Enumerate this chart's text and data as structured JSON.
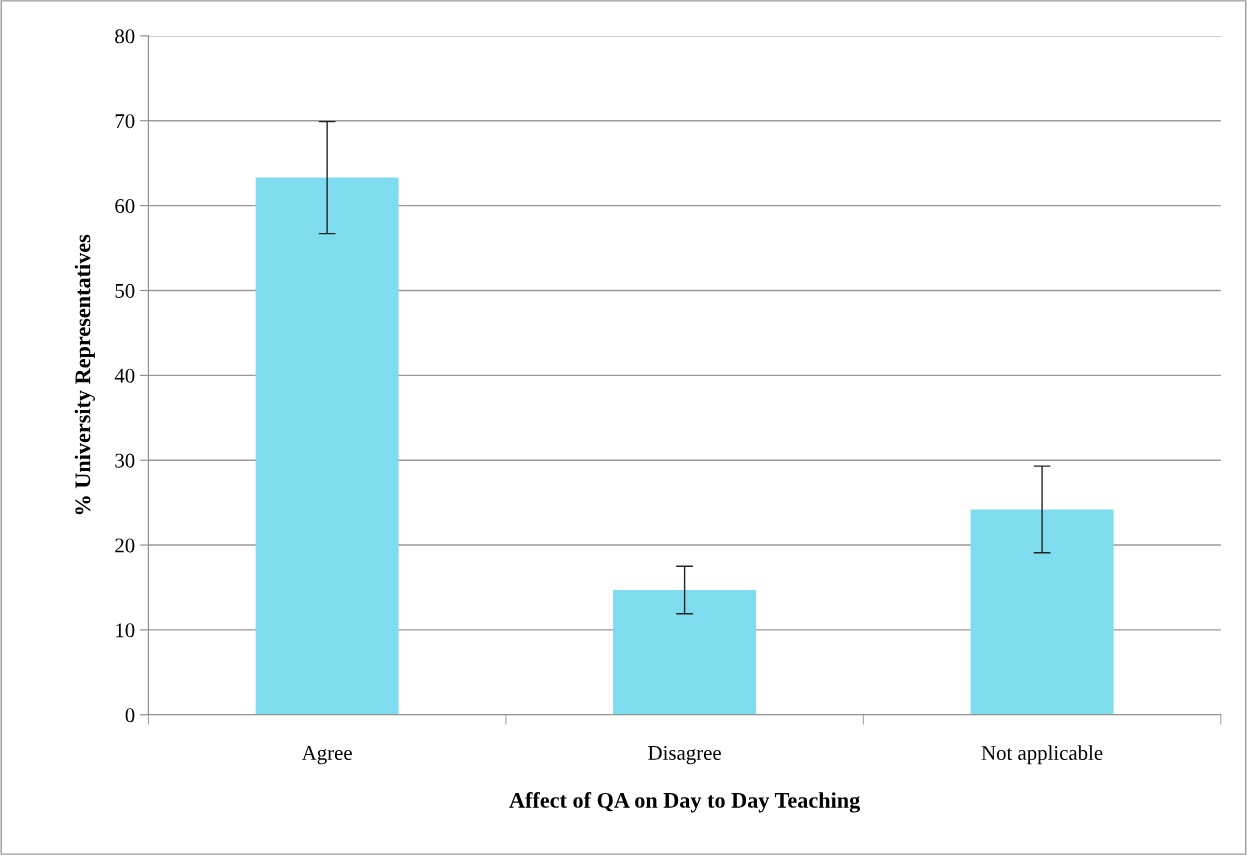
{
  "chart_data": {
    "type": "bar",
    "xlabel": "Affect of QA on Day to Day Teaching",
    "ylabel": "% University Representatives",
    "categories": [
      "Agree",
      "Disagree",
      "Not applicable"
    ],
    "values": [
      63.3,
      14.7,
      24.2
    ],
    "errors": [
      6.6,
      2.8,
      5.1
    ],
    "color": "#7fdcef",
    "ylim": [
      0,
      80
    ],
    "yticks": [
      0,
      10,
      20,
      30,
      40,
      50,
      60,
      70,
      80
    ],
    "grid": "y",
    "legend": false
  }
}
